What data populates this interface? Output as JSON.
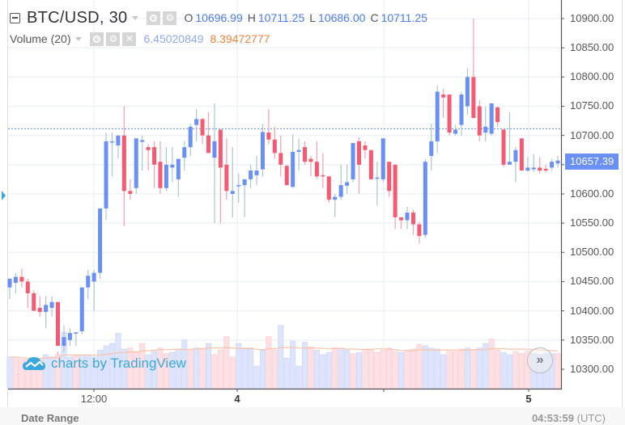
{
  "header": {
    "symbol": "BTC/USD, 30",
    "ohlc": [
      {
        "label": "O",
        "value": "10696.99"
      },
      {
        "label": "H",
        "value": "10711.25"
      },
      {
        "label": "L",
        "value": "10686.00"
      },
      {
        "label": "C",
        "value": "10711.25"
      }
    ]
  },
  "volume_legend": {
    "label": "Volume (20)",
    "value": "6.45020849",
    "ma_value": "8.39472777"
  },
  "price_axis": {
    "labels": [
      "10900.00",
      "10850.00",
      "10800.00",
      "10750.00",
      "10700.00",
      "10600.00",
      "10550.00",
      "10500.00",
      "10450.00",
      "10400.00",
      "10350.00",
      "10300.00"
    ],
    "last_price": "10657.39"
  },
  "time_axis": {
    "labels": [
      {
        "text": "12:00",
        "x": 116,
        "bold": false
      },
      {
        "text": "4",
        "x": 293,
        "bold": true
      },
      {
        "text": "5",
        "x": 653,
        "bold": true
      }
    ]
  },
  "watermark": "charts by TradingView",
  "footer": {
    "date_range_label": "Date Range",
    "clock_time": "04:53:59",
    "clock_tz": "(UTC)"
  },
  "colors": {
    "up": "#6a8ff5",
    "down": "#f55a72",
    "wick_up": "#a9c8cc",
    "wick_down": "#f5a0ac",
    "vol_up": "#dde4fb",
    "vol_down": "#fde0e4",
    "vol_ma": "#f8c3a8",
    "grid": "#edf2f8",
    "last_line": "#6a8ff5"
  },
  "chart_data": {
    "type": "candlestick",
    "title": "BTC/USD, 30",
    "xlabel": "",
    "ylabel": "",
    "ylim": [
      10270,
      10930
    ],
    "grid": true,
    "x_ticks": [
      "12:00",
      "4",
      "5"
    ],
    "y_ticks": [
      10300,
      10350,
      10400,
      10450,
      10500,
      10550,
      10600,
      10650,
      10700,
      10750,
      10800,
      10850,
      10900
    ],
    "last_price": 10657.39,
    "candles": [
      [
        10440,
        10455,
        10420,
        10455
      ],
      [
        10448,
        10465,
        10430,
        10458
      ],
      [
        10458,
        10472,
        10440,
        10450
      ],
      [
        10450,
        10455,
        10405,
        10430
      ],
      [
        10430,
        10435,
        10400,
        10400
      ],
      [
        10405,
        10425,
        10390,
        10398
      ],
      [
        10398,
        10425,
        10370,
        10410
      ],
      [
        10405,
        10425,
        10390,
        10415
      ],
      [
        10415,
        10330,
        10325,
        10340
      ],
      [
        10340,
        10375,
        10330,
        10355
      ],
      [
        10350,
        10370,
        10340,
        10362
      ],
      [
        10362,
        10364,
        10340,
        10363
      ],
      [
        10365,
        10440,
        10360,
        10440
      ],
      [
        10440,
        10470,
        10420,
        10460
      ],
      [
        10450,
        10470,
        10400,
        10465
      ],
      [
        10465,
        10575,
        10455,
        10575
      ],
      [
        10575,
        10705,
        10555,
        10690
      ],
      [
        10688,
        10705,
        10630,
        10690
      ],
      [
        10683,
        10700,
        10660,
        10700
      ],
      [
        10700,
        10750,
        10545,
        10605
      ],
      [
        10605,
        10625,
        10590,
        10600
      ],
      [
        10610,
        10695,
        10600,
        10695
      ],
      [
        10689,
        10700,
        10640,
        10692
      ],
      [
        10680,
        10685,
        10640,
        10675
      ],
      [
        10680,
        10690,
        10610,
        10650
      ],
      [
        10655,
        10690,
        10600,
        10610
      ],
      [
        10610,
        10680,
        10605,
        10650
      ],
      [
        10645,
        10680,
        10620,
        10650
      ],
      [
        10625,
        10660,
        10595,
        10660
      ],
      [
        10662,
        10690,
        10640,
        10680
      ],
      [
        10680,
        10720,
        10665,
        10715
      ],
      [
        10718,
        10745,
        10690,
        10728
      ],
      [
        10728,
        10730,
        10685,
        10700
      ],
      [
        10700,
        10740,
        10690,
        10670
      ],
      [
        10662,
        10755,
        10550,
        10690
      ],
      [
        10710,
        10710,
        10550,
        10645
      ],
      [
        10650,
        10695,
        10590,
        10605
      ],
      [
        10600,
        10680,
        10560,
        10605
      ],
      [
        10615,
        10635,
        10585,
        10615
      ],
      [
        10615,
        10625,
        10560,
        10625
      ],
      [
        10625,
        10650,
        10610,
        10640
      ],
      [
        10632,
        10665,
        10615,
        10640
      ],
      [
        10642,
        10720,
        10630,
        10706
      ],
      [
        10705,
        10745,
        10685,
        10693
      ],
      [
        10693,
        10715,
        10660,
        10670
      ],
      [
        10670,
        10700,
        10630,
        10650
      ],
      [
        10648,
        10650,
        10615,
        10615
      ],
      [
        10612,
        10702,
        10610,
        10672
      ],
      [
        10672,
        10695,
        10640,
        10675
      ],
      [
        10680,
        10690,
        10650,
        10655
      ],
      [
        10660,
        10665,
        10630,
        10655
      ],
      [
        10655,
        10690,
        10625,
        10630
      ],
      [
        10632,
        10670,
        10610,
        10630
      ],
      [
        10630,
        10625,
        10585,
        10590
      ],
      [
        10590,
        10600,
        10560,
        10595
      ],
      [
        10595,
        10650,
        10590,
        10615
      ],
      [
        10614,
        10650,
        10600,
        10620
      ],
      [
        10625,
        10675,
        10620,
        10687
      ],
      [
        10690,
        10697,
        10600,
        10650
      ],
      [
        10683,
        10690,
        10660,
        10675
      ],
      [
        10675,
        10675,
        10625,
        10625
      ],
      [
        10628,
        10655,
        10580,
        10628
      ],
      [
        10625,
        10690,
        10620,
        10695
      ],
      [
        10655,
        10605,
        10595,
        10605
      ],
      [
        10650,
        10575,
        10540,
        10560
      ],
      [
        10560,
        10555,
        10540,
        10555
      ],
      [
        10555,
        10578,
        10540,
        10568
      ],
      [
        10568,
        10573,
        10530,
        10548
      ],
      [
        10548,
        10552,
        10515,
        10528
      ],
      [
        10530,
        10660,
        10525,
        10655
      ],
      [
        10665,
        10720,
        10640,
        10690
      ],
      [
        10690,
        10785,
        10670,
        10775
      ],
      [
        10770,
        10780,
        10730,
        10765
      ],
      [
        10770,
        10760,
        10700,
        10705
      ],
      [
        10703,
        10718,
        10700,
        10710
      ],
      [
        10718,
        10775,
        10700,
        10770
      ],
      [
        10750,
        10815,
        10735,
        10800
      ],
      [
        10800,
        10900,
        10740,
        10730
      ],
      [
        10750,
        10760,
        10690,
        10700
      ],
      [
        10705,
        10750,
        10690,
        10715
      ],
      [
        10703,
        10755,
        10700,
        10755
      ],
      [
        10748,
        10750,
        10715,
        10723
      ],
      [
        10710,
        10710,
        10646,
        10650
      ],
      [
        10650,
        10740,
        10650,
        10655
      ],
      [
        10655,
        10680,
        10620,
        10675
      ],
      [
        10695,
        10695,
        10640,
        10640
      ],
      [
        10640,
        10663,
        10638,
        10645
      ],
      [
        10642,
        10668,
        10638,
        10645
      ],
      [
        10645,
        10663,
        10635,
        10640
      ],
      [
        10643,
        10650,
        10637,
        10640
      ],
      [
        10645,
        10660,
        10640,
        10655
      ],
      [
        10652,
        10665,
        10645,
        10657
      ]
    ],
    "volumes": [
      [
        2.8,
        1
      ],
      [
        2.8,
        0
      ],
      [
        2.6,
        0
      ],
      [
        2.6,
        0
      ],
      [
        2.6,
        0
      ],
      [
        2.6,
        0
      ],
      [
        3.0,
        1
      ],
      [
        2.8,
        1
      ],
      [
        3.0,
        0
      ],
      [
        5.0,
        1
      ],
      [
        2.8,
        1
      ],
      [
        3.0,
        0
      ],
      [
        3.0,
        1
      ],
      [
        3.0,
        1
      ],
      [
        2.8,
        1
      ],
      [
        3.4,
        1
      ],
      [
        3.8,
        1
      ],
      [
        4.0,
        1
      ],
      [
        4.9,
        1
      ],
      [
        3.5,
        1
      ],
      [
        3.6,
        0
      ],
      [
        3.2,
        0
      ],
      [
        4.0,
        0
      ],
      [
        3.0,
        1
      ],
      [
        3.4,
        1
      ],
      [
        3.6,
        0
      ],
      [
        3.1,
        0
      ],
      [
        3.2,
        1
      ],
      [
        3.5,
        1
      ],
      [
        4.3,
        1
      ],
      [
        3.4,
        0
      ],
      [
        3.6,
        1
      ],
      [
        3.5,
        0
      ],
      [
        4.0,
        1
      ],
      [
        3.0,
        0
      ],
      [
        3.4,
        0
      ],
      [
        4.6,
        0
      ],
      [
        2.8,
        0
      ],
      [
        4.0,
        1
      ],
      [
        3.6,
        1
      ],
      [
        3.6,
        1
      ],
      [
        2.0,
        1
      ],
      [
        3.4,
        1
      ],
      [
        4.6,
        0
      ],
      [
        3.4,
        0
      ],
      [
        5.6,
        1
      ],
      [
        2.7,
        1
      ],
      [
        4.2,
        1
      ],
      [
        2.0,
        1
      ],
      [
        4.1,
        1
      ],
      [
        3.7,
        0
      ],
      [
        3.4,
        1
      ],
      [
        3.0,
        1
      ],
      [
        3.2,
        1
      ],
      [
        3.6,
        0
      ],
      [
        3.6,
        1
      ],
      [
        3.4,
        1
      ],
      [
        3.1,
        0
      ],
      [
        3.2,
        1
      ],
      [
        3.5,
        0
      ],
      [
        3.5,
        0
      ],
      [
        3.2,
        0
      ],
      [
        3.4,
        0
      ],
      [
        3.6,
        0
      ],
      [
        3.3,
        0
      ],
      [
        3.2,
        1
      ],
      [
        3.4,
        0
      ],
      [
        3.5,
        0
      ],
      [
        3.9,
        0
      ],
      [
        3.8,
        1
      ],
      [
        3.6,
        1
      ],
      [
        3.5,
        1
      ],
      [
        3.0,
        1
      ],
      [
        3.3,
        0
      ],
      [
        3.3,
        0
      ],
      [
        3.5,
        0
      ],
      [
        3.6,
        1
      ],
      [
        3.4,
        0
      ],
      [
        3.6,
        1
      ],
      [
        4.0,
        1
      ],
      [
        4.4,
        0
      ],
      [
        3.4,
        0
      ],
      [
        3.2,
        1
      ],
      [
        3.0,
        1
      ],
      [
        3.3,
        0
      ],
      [
        3.1,
        0
      ],
      [
        3.3,
        0
      ],
      [
        3.1,
        1
      ],
      [
        3.0,
        1
      ],
      [
        3.1,
        1
      ],
      [
        3.1,
        1
      ],
      [
        3.1,
        0
      ]
    ]
  }
}
